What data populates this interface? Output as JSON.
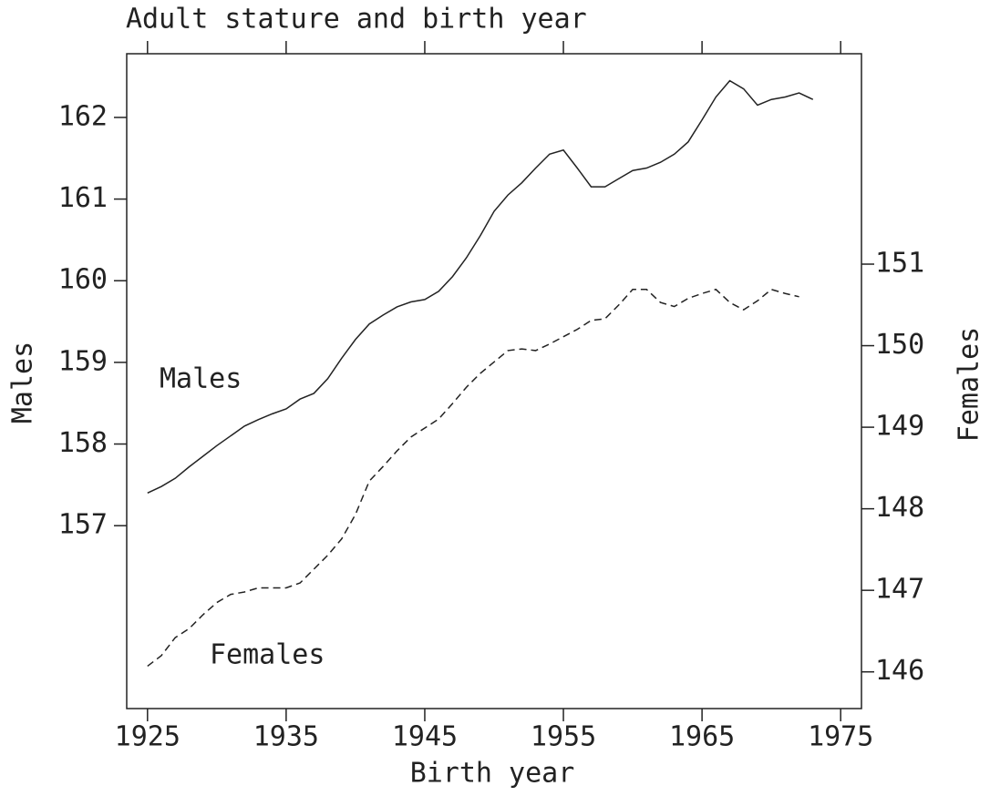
{
  "chart_data": {
    "type": "line",
    "title": "Adult stature and birth year",
    "x_label": "Birth year",
    "y_label": "Males",
    "y2_label": "Females",
    "xlim": [
      1923.5,
      1976.5
    ],
    "xticks": [
      1925,
      1935,
      1945,
      1955,
      1965,
      1975
    ],
    "ylim": [
      154.76,
      162.78
    ],
    "yticks": [
      157,
      158,
      159,
      160,
      161,
      162
    ],
    "y2lim": [
      145.55,
      153.58
    ],
    "y2ticks": [
      146,
      147,
      148,
      149,
      150,
      151
    ],
    "grid": false,
    "series": [
      {
        "name": "Males",
        "color": "#222222",
        "dash": false,
        "x": [
          1925,
          1926,
          1927,
          1928,
          1929,
          1930,
          1931,
          1932,
          1933,
          1934,
          1935,
          1936,
          1937,
          1938,
          1939,
          1940,
          1941,
          1942,
          1943,
          1944,
          1945,
          1946,
          1947,
          1948,
          1949,
          1950,
          1951,
          1952,
          1953,
          1954,
          1955,
          1956,
          1957,
          1958,
          1959,
          1960,
          1961,
          1962,
          1963,
          1964,
          1965,
          1966,
          1967,
          1968,
          1969,
          1970,
          1971,
          1972,
          1973
        ],
        "values": [
          157.4,
          157.48,
          157.58,
          157.72,
          157.85,
          157.98,
          158.1,
          158.22,
          158.3,
          158.37,
          158.43,
          158.55,
          158.62,
          158.8,
          159.05,
          159.28,
          159.47,
          159.58,
          159.68,
          159.74,
          159.77,
          159.87,
          160.05,
          160.28,
          160.55,
          160.85,
          161.05,
          161.2,
          161.38,
          161.55,
          161.6,
          161.38,
          161.15,
          161.15,
          161.25,
          161.35,
          161.38,
          161.45,
          161.55,
          161.7,
          161.97,
          162.25,
          162.45,
          162.35,
          162.15,
          162.22,
          162.25,
          162.3,
          162.22
        ]
      },
      {
        "name": "Females",
        "color": "#222222",
        "dash": true,
        "axis": "y2",
        "x": [
          1925,
          1926,
          1927,
          1928,
          1929,
          1930,
          1931,
          1932,
          1933,
          1934,
          1935,
          1936,
          1937,
          1938,
          1939,
          1940,
          1941,
          1942,
          1943,
          1944,
          1945,
          1946,
          1947,
          1948,
          1949,
          1950,
          1951,
          1952,
          1953,
          1954,
          1955,
          1956,
          1957,
          1958,
          1959,
          1960,
          1961,
          1962,
          1963,
          1964,
          1965,
          1966,
          1967,
          1968,
          1969,
          1970,
          1971,
          1972
        ],
        "values": [
          146.07,
          146.2,
          146.42,
          146.53,
          146.7,
          146.85,
          146.95,
          146.98,
          147.03,
          147.03,
          147.03,
          147.09,
          147.26,
          147.43,
          147.63,
          147.93,
          148.34,
          148.52,
          148.71,
          148.88,
          148.99,
          149.1,
          149.29,
          149.49,
          149.66,
          149.8,
          149.94,
          149.96,
          149.94,
          150.02,
          150.11,
          150.2,
          150.31,
          150.33,
          150.5,
          150.69,
          150.69,
          150.53,
          150.48,
          150.58,
          150.64,
          150.69,
          150.53,
          150.44,
          150.55,
          150.69,
          150.64,
          150.6
        ]
      }
    ]
  }
}
